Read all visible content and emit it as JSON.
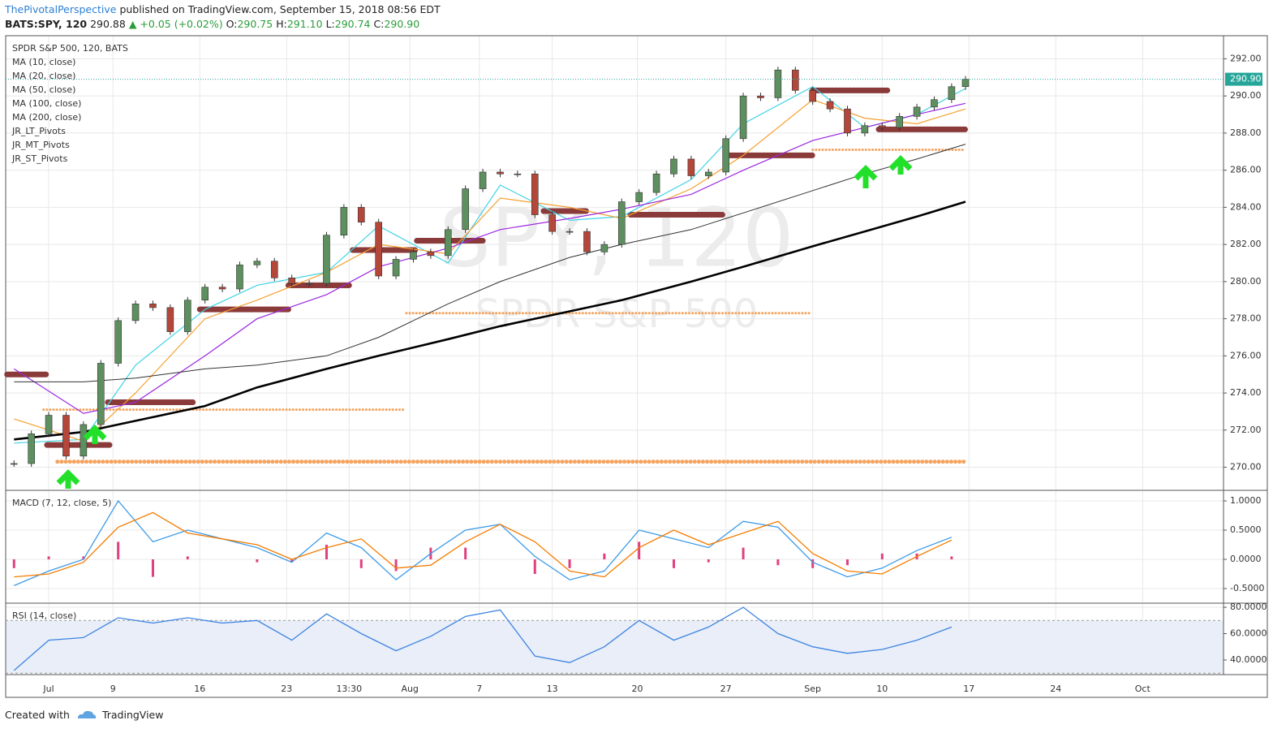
{
  "header": {
    "author": "ThePivotalPerspective",
    "published": "published on TradingView.com, September 15, 2018 08:56 EDT",
    "symbol": "BATS:SPY, 120",
    "price": "290.88",
    "change": "▲ +0.05 (+0.02%)",
    "ohlc": [
      {
        "k": "O:",
        "v": "290.75"
      },
      {
        "k": "H:",
        "v": "291.10"
      },
      {
        "k": "L:",
        "v": "290.74"
      },
      {
        "k": "C:",
        "v": "290.90"
      }
    ]
  },
  "footer": {
    "created": "Created with",
    "brand": "TradingView"
  },
  "chart_data": [
    {
      "type": "candlestick",
      "title": "SPDR S&P 500, 120, BATS",
      "watermark": [
        "SPY, 120",
        "SPDR S&P 500"
      ],
      "up_color": "#5d8f5f",
      "down_color": "#b4473a",
      "x": [
        -2,
        -1,
        0,
        1,
        2,
        3,
        4,
        5,
        6,
        7,
        8,
        9,
        10,
        11,
        12,
        13,
        14,
        15,
        16,
        17,
        18,
        19,
        20,
        21,
        22,
        23,
        24,
        25,
        26,
        27,
        28,
        29,
        30,
        31,
        32,
        33,
        34,
        35,
        36,
        37,
        38,
        39,
        40,
        41,
        42,
        43,
        44,
        45,
        46,
        47,
        48,
        49,
        50,
        51,
        52,
        52.8
      ],
      "close": [
        270.2,
        271.8,
        272.8,
        270.6,
        272.3,
        275.6,
        277.9,
        278.8,
        278.6,
        277.3,
        279.0,
        279.7,
        279.6,
        280.9,
        281.1,
        280.2,
        279.9,
        279.9,
        282.5,
        284.0,
        283.2,
        280.3,
        281.2,
        281.6,
        281.4,
        282.8,
        285.0,
        285.9,
        285.8,
        285.8,
        283.6,
        282.7,
        282.7,
        281.6,
        282.0,
        284.3,
        284.8,
        285.8,
        286.6,
        285.7,
        285.9,
        287.7,
        290.0,
        289.9,
        291.4,
        290.3,
        289.7,
        289.3,
        288.0,
        288.4,
        288.3,
        288.9,
        289.4,
        289.8,
        290.5,
        290.9
      ],
      "series": [
        {
          "name": "MA (10, close)",
          "color": "#3fd3e6",
          "width": 1.2,
          "x": [
            -2,
            2,
            5,
            9,
            12,
            16,
            19,
            23,
            26,
            30,
            33,
            37,
            40,
            44,
            47,
            50,
            52.8
          ],
          "values": [
            271.3,
            271.5,
            275.5,
            278.5,
            279.8,
            280.5,
            283.0,
            281.0,
            285.2,
            283.3,
            283.5,
            285.5,
            288.5,
            290.5,
            288.3,
            289.0,
            290.4
          ]
        },
        {
          "name": "MA (20, close)",
          "color": "#f5a030",
          "width": 1.2,
          "x": [
            -2,
            2,
            5,
            9,
            12,
            16,
            19,
            23,
            26,
            30,
            33,
            37,
            40,
            44,
            47,
            50,
            52.8
          ],
          "values": [
            272.6,
            271.4,
            274.0,
            278.0,
            279.0,
            280.5,
            282.0,
            281.5,
            284.5,
            284.0,
            283.4,
            285.0,
            286.8,
            289.8,
            288.8,
            288.5,
            289.3
          ]
        },
        {
          "name": "MA (50, close)",
          "color": "#9c27e0",
          "width": 1.2,
          "x": [
            -2,
            2,
            5,
            9,
            12,
            16,
            19,
            23,
            26,
            30,
            33,
            37,
            40,
            44,
            47,
            50,
            52.8
          ],
          "values": [
            275.3,
            272.9,
            273.5,
            276.0,
            278.0,
            279.3,
            280.8,
            281.8,
            282.8,
            283.4,
            283.9,
            284.7,
            286.0,
            287.6,
            288.3,
            289.0,
            289.6
          ]
        },
        {
          "name": "MA (100, close)",
          "color": "#333333",
          "width": 1,
          "x": [
            -2,
            2,
            5,
            9,
            12,
            16,
            19,
            23,
            26,
            30,
            33,
            37,
            40,
            44,
            47,
            50,
            52.8
          ],
          "values": [
            274.6,
            274.6,
            274.8,
            275.3,
            275.5,
            276.0,
            277.0,
            278.8,
            280.0,
            281.3,
            282.0,
            282.8,
            283.7,
            284.9,
            285.8,
            286.6,
            287.4
          ]
        },
        {
          "name": "MA (200, close)",
          "color": "#000000",
          "width": 2.6,
          "x": [
            -2,
            2,
            5,
            9,
            12,
            16,
            19,
            23,
            26,
            30,
            33,
            37,
            40,
            44,
            47,
            50,
            52.8
          ],
          "values": [
            271.5,
            271.9,
            272.5,
            273.3,
            274.3,
            275.3,
            276.0,
            276.9,
            277.6,
            278.4,
            279.0,
            280.0,
            280.8,
            281.9,
            282.7,
            283.5,
            284.3
          ]
        }
      ],
      "pivots": [
        {
          "name": "JR_LT_Pivots",
          "color": "#f4a460",
          "width": 5,
          "dash": "0.1 5",
          "levels": [
            {
              "y": 270.3,
              "x0": 0.5,
              "x1": 52.8
            }
          ]
        },
        {
          "name": "JR_MT_Pivots",
          "color": "#8b3a3a",
          "width": 7,
          "dash": "3 1.5",
          "levels": [
            {
              "y": 275.0,
              "x0": -2.4,
              "x1": -0.1
            },
            {
              "y": 271.2,
              "x0": -0.1,
              "x1": 3.5
            },
            {
              "y": 273.5,
              "x0": 3.4,
              "x1": 8.3
            },
            {
              "y": 278.5,
              "x0": 8.7,
              "x1": 13.8
            },
            {
              "y": 279.8,
              "x0": 13.8,
              "x1": 17.3
            },
            {
              "y": 281.7,
              "x0": 17.5,
              "x1": 21.1
            },
            {
              "y": 282.2,
              "x0": 21.2,
              "x1": 25
            },
            {
              "y": 283.8,
              "x0": 28.5,
              "x1": 31
            },
            {
              "y": 283.6,
              "x0": 33.5,
              "x1": 38.8
            },
            {
              "y": 286.8,
              "x0": 39,
              "x1": 44
            },
            {
              "y": 290.3,
              "x0": 44,
              "x1": 48.3
            },
            {
              "y": 288.2,
              "x0": 47.8,
              "x1": 52.8
            }
          ]
        },
        {
          "name": "JR_ST_Pivots",
          "color": "#f4a460",
          "width": 3,
          "dash": "0.1 4",
          "levels": [
            {
              "y": 273.1,
              "x0": -0.3,
              "x1": 20.4
            },
            {
              "y": 278.3,
              "x0": 20.6,
              "x1": 43.8
            },
            {
              "y": 287.1,
              "x0": 44,
              "x1": 52.8
            }
          ]
        }
      ],
      "last": {
        "value": 290.9,
        "label": "290.90",
        "color": "#26a69a"
      },
      "xlim": [
        -2.48,
        67.66
      ],
      "xticks": [
        {
          "value": 0,
          "label": "Jul"
        },
        {
          "value": 3.7,
          "label": "9"
        },
        {
          "value": 8.7,
          "label": "16"
        },
        {
          "value": 13.7,
          "label": "23"
        },
        {
          "value": 17.3,
          "label": "13:30"
        },
        {
          "value": 20.8,
          "label": "Aug"
        },
        {
          "value": 24.8,
          "label": "7"
        },
        {
          "value": 29,
          "label": "13"
        },
        {
          "value": 33.9,
          "label": "20"
        },
        {
          "value": 39,
          "label": "27"
        },
        {
          "value": 44,
          "label": "Sep"
        },
        {
          "value": 48,
          "label": "10"
        },
        {
          "value": 53,
          "label": "17"
        },
        {
          "value": 58,
          "label": "24"
        },
        {
          "value": 63,
          "label": "Oct"
        }
      ],
      "ylim": [
        268.8,
        293.2
      ],
      "yticks": [
        {
          "value": 270,
          "label": "270.00"
        },
        {
          "value": 272,
          "label": "272.00"
        },
        {
          "value": 274,
          "label": "274.00"
        },
        {
          "value": 276,
          "label": "276.00"
        },
        {
          "value": 278,
          "label": "278.00"
        },
        {
          "value": 280,
          "label": "280.00"
        },
        {
          "value": 282,
          "label": "282.00"
        },
        {
          "value": 284,
          "label": "284.00"
        },
        {
          "value": 286,
          "label": "286.00"
        },
        {
          "value": 288,
          "label": "288.00"
        },
        {
          "value": 290,
          "label": "290.00"
        },
        {
          "value": 292,
          "label": "292.00"
        }
      ],
      "grid": true
    },
    {
      "type": "line",
      "title": "MACD (7, 12, close, 5)",
      "x": [
        -2,
        0,
        2,
        4,
        6,
        8,
        10,
        12,
        14,
        16,
        18,
        20,
        22,
        24,
        26,
        28,
        30,
        32,
        34,
        36,
        38,
        40,
        42,
        44,
        46,
        48,
        50,
        52
      ],
      "series": [
        {
          "name": "MACD",
          "color": "#3d9be9",
          "values": [
            -0.45,
            -0.2,
            0.0,
            1.0,
            0.3,
            0.5,
            0.35,
            0.2,
            -0.05,
            0.45,
            0.2,
            -0.35,
            0.1,
            0.5,
            0.6,
            0.05,
            -0.35,
            -0.2,
            0.5,
            0.35,
            0.2,
            0.65,
            0.55,
            -0.05,
            -0.3,
            -0.15,
            0.15,
            0.38
          ]
        },
        {
          "name": "Signal",
          "color": "#f57c00",
          "values": [
            -0.3,
            -0.25,
            -0.05,
            0.55,
            0.8,
            0.45,
            0.35,
            0.25,
            0.0,
            0.2,
            0.35,
            -0.15,
            -0.1,
            0.3,
            0.6,
            0.3,
            -0.2,
            -0.3,
            0.2,
            0.5,
            0.25,
            0.45,
            0.65,
            0.1,
            -0.2,
            -0.25,
            0.05,
            0.33
          ]
        }
      ],
      "histogram": {
        "color": "#e0407f",
        "values": [
          -0.15,
          0.05,
          0.05,
          0.3,
          -0.3,
          0.05,
          0.0,
          -0.05,
          -0.05,
          0.25,
          -0.15,
          -0.2,
          0.2,
          0.2,
          0.0,
          -0.25,
          -0.15,
          0.1,
          0.3,
          -0.15,
          -0.05,
          0.2,
          -0.1,
          -0.15,
          -0.1,
          0.1,
          0.1,
          0.05
        ]
      },
      "ylim": [
        -0.736,
        1.167
      ],
      "yticks": [
        {
          "value": 1,
          "label": "1.0000"
        },
        {
          "value": 0.5,
          "label": "0.5000"
        },
        {
          "value": 0,
          "label": "0.0000"
        },
        {
          "value": -0.5,
          "label": "-0.5000"
        }
      ]
    },
    {
      "type": "line",
      "title": "RSI (14, close)",
      "x": [
        -2,
        0,
        2,
        4,
        6,
        8,
        10,
        12,
        14,
        16,
        18,
        20,
        22,
        24,
        26,
        28,
        30,
        32,
        34,
        36,
        38,
        40,
        42,
        44,
        46,
        48,
        50,
        52
      ],
      "series": [
        {
          "name": "RSI",
          "color": "#3d84e0",
          "values": [
            32,
            55,
            57,
            72,
            68,
            72,
            68,
            70,
            55,
            75,
            60,
            47,
            58,
            73,
            78,
            43,
            38,
            50,
            70,
            55,
            65,
            80,
            60,
            50,
            45,
            48,
            55,
            65
          ]
        }
      ],
      "band": {
        "range": [
          30,
          70
        ],
        "color": "#e9eef9"
      },
      "ylim": [
        29.5,
        82.5
      ],
      "yticks": [
        {
          "value": 80,
          "label": "80.0000"
        },
        {
          "value": 60,
          "label": "60.0000"
        },
        {
          "value": 40,
          "label": "40.0000"
        }
      ]
    }
  ]
}
